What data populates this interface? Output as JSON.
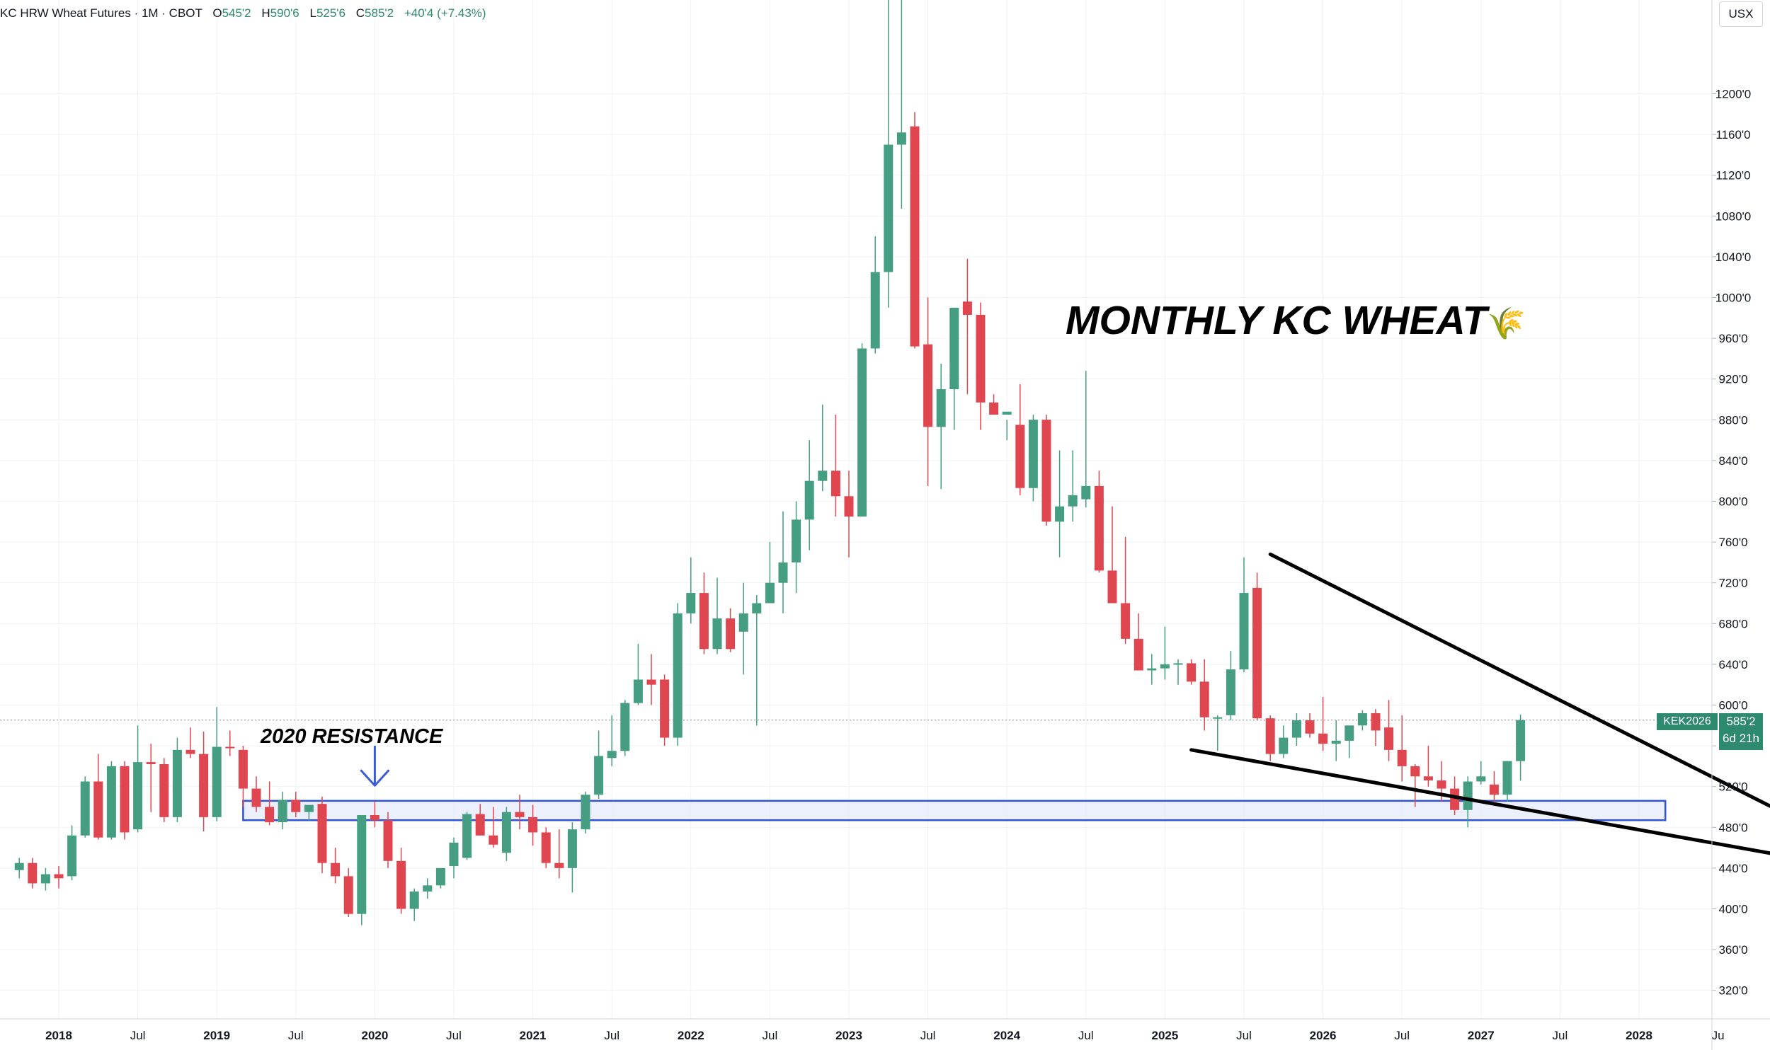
{
  "header": {
    "title": "KC HRW Wheat Futures · 1M · CBOT",
    "open_label": "O",
    "open": "545'2",
    "high_label": "H",
    "high": "590'6",
    "low_label": "L",
    "low": "525'6",
    "close_label": "C",
    "close": "585'2",
    "change": "+40'4 (+7.43%)"
  },
  "unit_button": "USX",
  "annotations": {
    "main_title": "MONTHLY KC WHEAT",
    "main_title_icon": "wheat-icon",
    "main_title_glyph": "🌾",
    "resistance_label": "2020 RESISTANCE"
  },
  "price_tag": {
    "symbol": "KEK2026",
    "price": "585'2",
    "countdown": "6d 21h"
  },
  "colors": {
    "up": "#459d82",
    "down": "#e0464f",
    "zone_border": "#2f52d6",
    "zone_fill": "#e6eafb",
    "arrow": "#3a5bd8",
    "trendline": "#000000"
  },
  "chart_data": {
    "type": "candlestick",
    "title": "",
    "xlabel": "",
    "ylabel": "",
    "ylim": [
      292,
      1292
    ],
    "x_ticks": [
      "2018",
      "Jul",
      "2019",
      "Jul",
      "2020",
      "Jul",
      "2021",
      "Jul",
      "2022",
      "Jul",
      "2023",
      "Jul",
      "2024",
      "Jul",
      "2025",
      "Jul",
      "2026",
      "Jul",
      "2027",
      "Jul",
      "2028",
      "Ju"
    ],
    "x_tick_months": [
      "2018-01",
      "2018-07",
      "2019-01",
      "2019-07",
      "2020-01",
      "2020-07",
      "2021-01",
      "2021-07",
      "2022-01",
      "2022-07",
      "2023-01",
      "2023-07",
      "2024-01",
      "2024-07",
      "2025-01",
      "2025-07",
      "2026-01",
      "2026-07",
      "2027-01",
      "2027-07",
      "2028-01",
      "2028-07"
    ],
    "y_ticks": [
      "320'0",
      "360'0",
      "400'0",
      "440'0",
      "480'0",
      "520'0",
      "560'0",
      "600'0",
      "640'0",
      "680'0",
      "720'0",
      "760'0",
      "800'0",
      "840'0",
      "880'0",
      "920'0",
      "960'0",
      "1000'0",
      "1040'0",
      "1080'0",
      "1120'0",
      "1160'0",
      "1200'0"
    ],
    "y_tick_values": [
      320,
      360,
      400,
      440,
      480,
      520,
      560,
      600,
      640,
      680,
      720,
      760,
      800,
      840,
      880,
      920,
      960,
      1000,
      1040,
      1080,
      1120,
      1160,
      1200
    ],
    "grid": true,
    "current_price": 585.25,
    "candles": [
      {
        "t": "2017-10",
        "o": 438,
        "h": 450,
        "l": 430,
        "c": 445
      },
      {
        "t": "2017-11",
        "o": 445,
        "h": 450,
        "l": 420,
        "c": 425
      },
      {
        "t": "2017-12",
        "o": 425,
        "h": 440,
        "l": 418,
        "c": 434
      },
      {
        "t": "2018-01",
        "o": 434,
        "h": 442,
        "l": 420,
        "c": 430
      },
      {
        "t": "2018-02",
        "o": 432,
        "h": 482,
        "l": 428,
        "c": 472
      },
      {
        "t": "2018-03",
        "o": 472,
        "h": 530,
        "l": 470,
        "c": 525
      },
      {
        "t": "2018-04",
        "o": 525,
        "h": 552,
        "l": 468,
        "c": 470
      },
      {
        "t": "2018-05",
        "o": 470,
        "h": 545,
        "l": 468,
        "c": 540
      },
      {
        "t": "2018-06",
        "o": 540,
        "h": 545,
        "l": 468,
        "c": 475
      },
      {
        "t": "2018-07",
        "o": 478,
        "h": 580,
        "l": 475,
        "c": 544
      },
      {
        "t": "2018-08",
        "o": 544,
        "h": 562,
        "l": 495,
        "c": 542
      },
      {
        "t": "2018-09",
        "o": 542,
        "h": 548,
        "l": 485,
        "c": 490
      },
      {
        "t": "2018-10",
        "o": 490,
        "h": 568,
        "l": 485,
        "c": 556
      },
      {
        "t": "2018-11",
        "o": 556,
        "h": 578,
        "l": 548,
        "c": 552
      },
      {
        "t": "2018-12",
        "o": 552,
        "h": 574,
        "l": 476,
        "c": 490
      },
      {
        "t": "2019-01",
        "o": 490,
        "h": 598,
        "l": 486,
        "c": 559
      },
      {
        "t": "2019-02",
        "o": 559,
        "h": 575,
        "l": 550,
        "c": 558
      },
      {
        "t": "2019-03",
        "o": 556,
        "h": 560,
        "l": 500,
        "c": 518
      },
      {
        "t": "2019-04",
        "o": 518,
        "h": 530,
        "l": 495,
        "c": 500
      },
      {
        "t": "2019-05",
        "o": 500,
        "h": 525,
        "l": 482,
        "c": 485
      },
      {
        "t": "2019-06",
        "o": 485,
        "h": 515,
        "l": 478,
        "c": 507
      },
      {
        "t": "2019-07",
        "o": 507,
        "h": 515,
        "l": 490,
        "c": 495
      },
      {
        "t": "2019-08",
        "o": 495,
        "h": 500,
        "l": 486,
        "c": 502
      },
      {
        "t": "2019-09",
        "o": 503,
        "h": 510,
        "l": 435,
        "c": 445
      },
      {
        "t": "2019-10",
        "o": 445,
        "h": 460,
        "l": 425,
        "c": 432
      },
      {
        "t": "2019-11",
        "o": 432,
        "h": 440,
        "l": 392,
        "c": 395
      },
      {
        "t": "2019-12",
        "o": 395,
        "h": 490,
        "l": 384,
        "c": 492
      },
      {
        "t": "2020-01",
        "o": 492,
        "h": 505,
        "l": 480,
        "c": 487
      },
      {
        "t": "2020-02",
        "o": 487,
        "h": 495,
        "l": 440,
        "c": 447
      },
      {
        "t": "2020-03",
        "o": 447,
        "h": 460,
        "l": 395,
        "c": 400
      },
      {
        "t": "2020-04",
        "o": 400,
        "h": 420,
        "l": 388,
        "c": 417
      },
      {
        "t": "2020-05",
        "o": 417,
        "h": 430,
        "l": 410,
        "c": 423
      },
      {
        "t": "2020-06",
        "o": 423,
        "h": 440,
        "l": 420,
        "c": 440
      },
      {
        "t": "2020-07",
        "o": 442,
        "h": 470,
        "l": 430,
        "c": 465
      },
      {
        "t": "2020-08",
        "o": 450,
        "h": 495,
        "l": 448,
        "c": 493
      },
      {
        "t": "2020-09",
        "o": 493,
        "h": 503,
        "l": 472,
        "c": 472
      },
      {
        "t": "2020-10",
        "o": 472,
        "h": 500,
        "l": 460,
        "c": 463
      },
      {
        "t": "2020-11",
        "o": 455,
        "h": 500,
        "l": 447,
        "c": 495
      },
      {
        "t": "2020-12",
        "o": 495,
        "h": 512,
        "l": 478,
        "c": 490
      },
      {
        "t": "2021-01",
        "o": 490,
        "h": 502,
        "l": 462,
        "c": 475
      },
      {
        "t": "2021-02",
        "o": 475,
        "h": 480,
        "l": 440,
        "c": 445
      },
      {
        "t": "2021-03",
        "o": 445,
        "h": 478,
        "l": 430,
        "c": 440
      },
      {
        "t": "2021-04",
        "o": 440,
        "h": 485,
        "l": 416,
        "c": 478
      },
      {
        "t": "2021-05",
        "o": 478,
        "h": 515,
        "l": 474,
        "c": 512
      },
      {
        "t": "2021-06",
        "o": 512,
        "h": 575,
        "l": 508,
        "c": 550
      },
      {
        "t": "2021-07",
        "o": 548,
        "h": 590,
        "l": 540,
        "c": 555
      },
      {
        "t": "2021-08",
        "o": 555,
        "h": 605,
        "l": 550,
        "c": 602
      },
      {
        "t": "2021-09",
        "o": 602,
        "h": 660,
        "l": 600,
        "c": 625
      },
      {
        "t": "2021-10",
        "o": 625,
        "h": 650,
        "l": 600,
        "c": 620
      },
      {
        "t": "2021-11",
        "o": 625,
        "h": 630,
        "l": 560,
        "c": 568
      },
      {
        "t": "2021-12",
        "o": 568,
        "h": 700,
        "l": 560,
        "c": 690
      },
      {
        "t": "2022-01",
        "o": 690,
        "h": 745,
        "l": 680,
        "c": 710
      },
      {
        "t": "2022-02",
        "o": 710,
        "h": 730,
        "l": 650,
        "c": 655
      },
      {
        "t": "2022-03",
        "o": 655,
        "h": 725,
        "l": 650,
        "c": 685
      },
      {
        "t": "2022-04",
        "o": 685,
        "h": 695,
        "l": 652,
        "c": 655
      },
      {
        "t": "2022-05",
        "o": 672,
        "h": 720,
        "l": 630,
        "c": 690
      },
      {
        "t": "2022-06",
        "o": 690,
        "h": 708,
        "l": 580,
        "c": 700
      },
      {
        "t": "2022-07",
        "o": 700,
        "h": 760,
        "l": 700,
        "c": 720
      },
      {
        "t": "2022-08",
        "o": 720,
        "h": 790,
        "l": 690,
        "c": 740
      },
      {
        "t": "2022-09",
        "o": 740,
        "h": 800,
        "l": 710,
        "c": 782
      },
      {
        "t": "2022-10",
        "o": 782,
        "h": 860,
        "l": 752,
        "c": 820
      },
      {
        "t": "2022-11",
        "o": 820,
        "h": 895,
        "l": 810,
        "c": 830
      },
      {
        "t": "2022-12",
        "o": 830,
        "h": 885,
        "l": 785,
        "c": 805
      },
      {
        "t": "2023-01",
        "o": 805,
        "h": 830,
        "l": 745,
        "c": 785
      },
      {
        "t": "2023-02",
        "o": 785,
        "h": 955,
        "l": 785,
        "c": 950
      },
      {
        "t": "2023-03",
        "o": 950,
        "h": 1060,
        "l": 945,
        "c": 1025
      },
      {
        "t": "2023-04",
        "o": 1025,
        "h": 1320,
        "l": 990,
        "c": 1150
      },
      {
        "t": "2023-05",
        "o": 1150,
        "h": 1330,
        "l": 1087,
        "c": 1162
      },
      {
        "t": "2023-06",
        "o": 1168,
        "h": 1182,
        "l": 950,
        "c": 952
      },
      {
        "t": "2023-07",
        "o": 954,
        "h": 1000,
        "l": 815,
        "c": 873
      },
      {
        "t": "2023-08",
        "o": 873,
        "h": 935,
        "l": 812,
        "c": 910
      },
      {
        "t": "2023-09",
        "o": 910,
        "h": 990,
        "l": 870,
        "c": 990
      },
      {
        "t": "2023-10",
        "o": 996,
        "h": 1038,
        "l": 905,
        "c": 983
      },
      {
        "t": "2023-11",
        "o": 983,
        "h": 995,
        "l": 870,
        "c": 897
      },
      {
        "t": "2023-12",
        "o": 897,
        "h": 905,
        "l": 885,
        "c": 885
      },
      {
        "t": "2024-01",
        "o": 885,
        "h": 880,
        "l": 860,
        "c": 888
      },
      {
        "t": "2024-02",
        "o": 875,
        "h": 915,
        "l": 806,
        "c": 813
      },
      {
        "t": "2024-03",
        "o": 813,
        "h": 885,
        "l": 800,
        "c": 880
      },
      {
        "t": "2024-04",
        "o": 880,
        "h": 885,
        "l": 776,
        "c": 780
      },
      {
        "t": "2024-05",
        "o": 780,
        "h": 850,
        "l": 745,
        "c": 795
      },
      {
        "t": "2024-06",
        "o": 795,
        "h": 850,
        "l": 780,
        "c": 806
      },
      {
        "t": "2024-07",
        "o": 802,
        "h": 928,
        "l": 794,
        "c": 815
      },
      {
        "t": "2024-08",
        "o": 815,
        "h": 830,
        "l": 730,
        "c": 732
      },
      {
        "t": "2024-09",
        "o": 732,
        "h": 795,
        "l": 700,
        "c": 700
      },
      {
        "t": "2024-10",
        "o": 700,
        "h": 765,
        "l": 660,
        "c": 665
      },
      {
        "t": "2024-11",
        "o": 665,
        "h": 690,
        "l": 640,
        "c": 634
      },
      {
        "t": "2024-12",
        "o": 634,
        "h": 650,
        "l": 620,
        "c": 636
      },
      {
        "t": "2025-01",
        "o": 636,
        "h": 677,
        "l": 625,
        "c": 640
      },
      {
        "t": "2025-02",
        "o": 640,
        "h": 645,
        "l": 620,
        "c": 641
      },
      {
        "t": "2025-03",
        "o": 641,
        "h": 645,
        "l": 620,
        "c": 623
      },
      {
        "t": "2025-04",
        "o": 623,
        "h": 645,
        "l": 575,
        "c": 588
      },
      {
        "t": "2025-05",
        "o": 588,
        "h": 590,
        "l": 555,
        "c": 588
      },
      {
        "t": "2025-06",
        "o": 590,
        "h": 653,
        "l": 585,
        "c": 635
      },
      {
        "t": "2025-07",
        "o": 635,
        "h": 745,
        "l": 632,
        "c": 710
      },
      {
        "t": "2025-08",
        "o": 715,
        "h": 730,
        "l": 585,
        "c": 587
      },
      {
        "t": "2025-09",
        "o": 587,
        "h": 590,
        "l": 545,
        "c": 552
      },
      {
        "t": "2025-10",
        "o": 552,
        "h": 580,
        "l": 548,
        "c": 568
      },
      {
        "t": "2025-11",
        "o": 568,
        "h": 592,
        "l": 560,
        "c": 585
      },
      {
        "t": "2025-12",
        "o": 585,
        "h": 592,
        "l": 568,
        "c": 572
      },
      {
        "t": "2026-01",
        "o": 572,
        "h": 608,
        "l": 555,
        "c": 562
      },
      {
        "t": "2026-02",
        "o": 562,
        "h": 585,
        "l": 545,
        "c": 565
      },
      {
        "t": "2026-03",
        "o": 565,
        "h": 580,
        "l": 548,
        "c": 580
      },
      {
        "t": "2026-04",
        "o": 580,
        "h": 595,
        "l": 575,
        "c": 592
      },
      {
        "t": "2026-05",
        "o": 592,
        "h": 596,
        "l": 560,
        "c": 575
      },
      {
        "t": "2026-06",
        "o": 578,
        "h": 605,
        "l": 545,
        "c": 556
      },
      {
        "t": "2026-07",
        "o": 556,
        "h": 590,
        "l": 525,
        "c": 540
      },
      {
        "t": "2026-08",
        "o": 540,
        "h": 542,
        "l": 500,
        "c": 530
      },
      {
        "t": "2026-09",
        "o": 530,
        "h": 560,
        "l": 520,
        "c": 526
      },
      {
        "t": "2026-10",
        "o": 526,
        "h": 545,
        "l": 505,
        "c": 518
      },
      {
        "t": "2026-11",
        "o": 518,
        "h": 530,
        "l": 492,
        "c": 497
      },
      {
        "t": "2026-12",
        "o": 497,
        "h": 530,
        "l": 480,
        "c": 525
      },
      {
        "t": "2027-01",
        "o": 525,
        "h": 545,
        "l": 522,
        "c": 530
      },
      {
        "t": "2027-02",
        "o": 522,
        "h": 535,
        "l": 505,
        "c": 512
      },
      {
        "t": "2027-03",
        "o": 512,
        "h": 545,
        "l": 505,
        "c": 545
      },
      {
        "t": "2027-04",
        "o": 545,
        "h": 590.75,
        "l": 525.75,
        "c": 585.25
      }
    ],
    "resistance_zone": {
      "from": "2019-03",
      "to": "2028-03",
      "low": 487,
      "high": 506
    },
    "resistance_arrow": {
      "month": "2020-01",
      "from": 560,
      "to": 521
    },
    "trendlines": [
      {
        "name": "upper",
        "from": {
          "t": "2025-09",
          "v": 748
        },
        "to": {
          "t": "2029-04",
          "v": 468
        }
      },
      {
        "name": "lower",
        "from": {
          "t": "2025-03",
          "v": 556
        },
        "to": {
          "t": "2029-04",
          "v": 443
        }
      }
    ]
  }
}
